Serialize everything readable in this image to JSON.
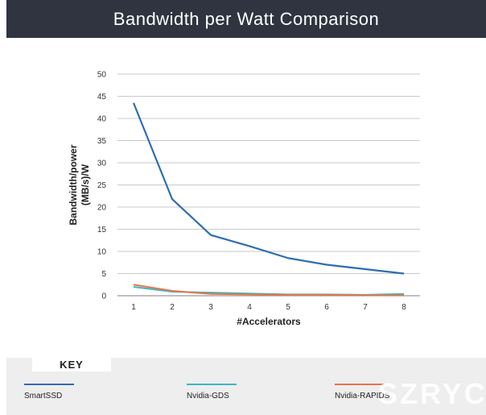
{
  "header": {
    "title": "Bandwidth per Watt Comparison"
  },
  "key": {
    "title": "KEY"
  },
  "watermark": "SZRYC",
  "chart_data": {
    "type": "line",
    "title": "Bandwidth per Watt Comparison",
    "xlabel": "#Accelerators",
    "ylabel": [
      "Bandwidth/power",
      "(MB/s)/W"
    ],
    "x": [
      1,
      2,
      3,
      4,
      5,
      6,
      7,
      8
    ],
    "ylim": [
      0,
      50
    ],
    "yticks": [
      0,
      5,
      10,
      15,
      20,
      25,
      30,
      35,
      40,
      45,
      50
    ],
    "grid": true,
    "legend": "bottom",
    "series": [
      {
        "name": "SmartSSD",
        "color": "#2d6db5",
        "values": [
          43.5,
          21.8,
          13.7,
          11.2,
          8.5,
          7.0,
          6.0,
          5.0
        ]
      },
      {
        "name": "Nvidia-GDS",
        "color": "#3bb7c4",
        "values": [
          2.0,
          0.9,
          0.7,
          0.5,
          0.3,
          0.3,
          0.2,
          0.4
        ]
      },
      {
        "name": "Nvidia-RAPIDS",
        "color": "#e8734a",
        "values": [
          2.5,
          1.1,
          0.4,
          0.3,
          0.2,
          0.2,
          0.1,
          0.1
        ]
      }
    ]
  }
}
